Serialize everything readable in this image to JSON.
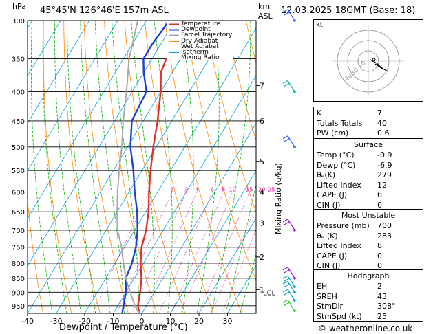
{
  "header": {
    "hpa": "hPa",
    "location": "45°45'N 126°46'E 157m ASL",
    "km": "km",
    "asl": "ASL",
    "datetime": "12.03.2025 18GMT (Base: 18)"
  },
  "legend": [
    "Temperature",
    "Dewpoint",
    "Parcel Trajectory",
    "Dry Adiabat",
    "Wet Adiabat",
    "Isotherm",
    "Mixing Ratio"
  ],
  "colors": {
    "temperature": "#e0302a",
    "dewpoint": "#1c3fd6",
    "parcel": "#a8a8a8",
    "dry_adiabat": "#ff8c00",
    "wet_adiabat": "#00b000",
    "isotherm": "#00a0e0",
    "mixing_ratio": "#e000a0"
  },
  "chart_data": {
    "type": "line",
    "title": "45°45'N 126°46'E 157m ASL",
    "xlabel": "Dewpoint / Temperature (°C)",
    "ylabel": "hPa",
    "y2label": "Mixing Ratio (g/kg)",
    "xlim": [
      -40,
      40
    ],
    "ylim": [
      300,
      980
    ],
    "y_scale": "log",
    "skew": true,
    "x_ticks": [
      "-40",
      "-30",
      "-20",
      "-10",
      "0",
      "10",
      "20",
      "30"
    ],
    "pressure_levels": [
      "300",
      "350",
      "400",
      "450",
      "500",
      "550",
      "600",
      "650",
      "700",
      "750",
      "800",
      "850",
      "900",
      "950"
    ],
    "km_labels": [
      {
        "label": "7",
        "p": 390
      },
      {
        "label": "6",
        "p": 450
      },
      {
        "label": "5",
        "p": 530
      },
      {
        "label": "4",
        "p": 600
      },
      {
        "label": "3",
        "p": 680
      },
      {
        "label": "2",
        "p": 780
      },
      {
        "label": "1",
        "p": 890
      }
    ],
    "lcl_label": "LCL",
    "lcl_pressure": 900,
    "mixing_ratio_labels": [
      "1",
      "2",
      "3",
      "4",
      "6",
      "8",
      "10",
      "15",
      "20",
      "25"
    ],
    "series": [
      {
        "name": "Temperature",
        "points": [
          [
            980,
            -0.9
          ],
          [
            950,
            -3
          ],
          [
            900,
            -5
          ],
          [
            850,
            -7.5
          ],
          [
            800,
            -11
          ],
          [
            750,
            -14
          ],
          [
            700,
            -16
          ],
          [
            650,
            -19
          ],
          [
            600,
            -23
          ],
          [
            550,
            -27
          ],
          [
            500,
            -31
          ],
          [
            450,
            -35
          ],
          [
            400,
            -40
          ],
          [
            370,
            -44
          ],
          [
            350,
            -45
          ],
          [
            330,
            -43
          ],
          [
            300,
            -39
          ]
        ]
      },
      {
        "name": "Dewpoint",
        "points": [
          [
            980,
            -6.9
          ],
          [
            950,
            -8
          ],
          [
            900,
            -10
          ],
          [
            850,
            -13
          ],
          [
            800,
            -14
          ],
          [
            750,
            -16
          ],
          [
            700,
            -19
          ],
          [
            650,
            -23
          ],
          [
            600,
            -28
          ],
          [
            550,
            -33
          ],
          [
            500,
            -39
          ],
          [
            450,
            -44
          ],
          [
            400,
            -45
          ],
          [
            370,
            -50
          ],
          [
            350,
            -53
          ],
          [
            330,
            -53
          ],
          [
            300,
            -52
          ]
        ]
      },
      {
        "name": "Parcel Trajectory",
        "points": [
          [
            980,
            -0.9
          ],
          [
            950,
            -4
          ],
          [
            900,
            -8.5
          ],
          [
            850,
            -13
          ],
          [
            800,
            -17
          ],
          [
            750,
            -21
          ],
          [
            700,
            -26
          ],
          [
            650,
            -30
          ],
          [
            600,
            -34
          ],
          [
            550,
            -38
          ],
          [
            500,
            -42
          ],
          [
            450,
            -47
          ],
          [
            400,
            -52
          ],
          [
            350,
            -58
          ],
          [
            300,
            -63
          ]
        ]
      }
    ]
  },
  "hodograph": {
    "unit": "kt",
    "ring_labels": [
      "40",
      "30",
      "10"
    ]
  },
  "indices": [
    {
      "label": "K",
      "value": "7"
    },
    {
      "label": "Totals Totals",
      "value": "40"
    },
    {
      "label": "PW (cm)",
      "value": "0.6"
    }
  ],
  "surface": {
    "title": "Surface",
    "rows": [
      {
        "label": "Temp (°C)",
        "value": "-0.9"
      },
      {
        "label": "Dewp (°C)",
        "value": "-6.9"
      },
      {
        "label": "θₑ(K)",
        "value": "279"
      },
      {
        "label": "Lifted Index",
        "value": "12"
      },
      {
        "label": "CAPE (J)",
        "value": "6"
      },
      {
        "label": "CIN (J)",
        "value": "0"
      }
    ]
  },
  "most_unstable": {
    "title": "Most Unstable",
    "rows": [
      {
        "label": "Pressure (mb)",
        "value": "700"
      },
      {
        "label": "θₑ (K)",
        "value": "283"
      },
      {
        "label": "Lifted Index",
        "value": "8"
      },
      {
        "label": "CAPE (J)",
        "value": "0"
      },
      {
        "label": "CIN (J)",
        "value": "0"
      }
    ]
  },
  "hodograph_table": {
    "title": "Hodograph",
    "rows": [
      {
        "label": "EH",
        "value": "2"
      },
      {
        "label": "SREH",
        "value": "43"
      },
      {
        "label": "StmDir",
        "value": "308°"
      },
      {
        "label": "StmSpd (kt)",
        "value": "25"
      }
    ]
  },
  "copyright": "© weatheronline.co.uk"
}
